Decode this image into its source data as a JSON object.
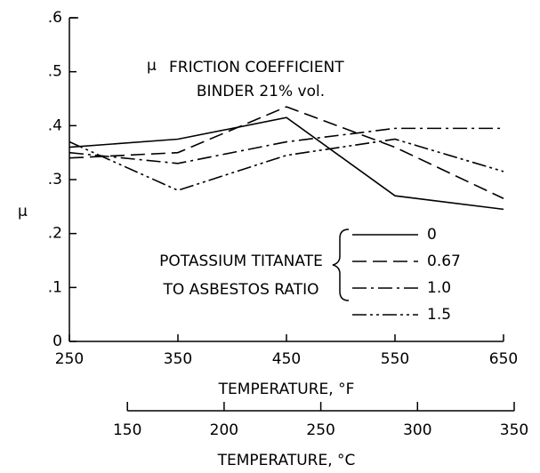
{
  "chart_data": {
    "type": "line",
    "annotation": "FRICTION COEFFICIENT",
    "annotation_symbol": "μ",
    "annotation2": "BINDER 21% vol.",
    "legend_title": [
      "POTASSIUM TITANATE",
      "TO ASBESTOS RATIO"
    ],
    "xlabel": "TEMPERATURE, °F",
    "ylabel": "μ",
    "x2label": "TEMPERATURE, °C",
    "x": [
      250,
      350,
      450,
      550,
      650
    ],
    "xlim": [
      250,
      650
    ],
    "xticks": [
      250,
      350,
      450,
      550,
      650
    ],
    "ylim": [
      0,
      0.6
    ],
    "yticks": [
      0,
      {
        "value": 0.1,
        "label": ".1"
      },
      {
        "value": 0.2,
        "label": ".2"
      },
      {
        "value": 0.3,
        "label": ".3"
      },
      {
        "value": 0.4,
        "label": ".4"
      },
      {
        "value": 0.5,
        "label": ".5"
      },
      {
        "value": 0.6,
        "label": ".6"
      }
    ],
    "x2lim": [
      120,
      350
    ],
    "x2ticks": [
      150,
      200,
      250,
      300,
      350
    ],
    "series": [
      {
        "name": "0",
        "color": "#000000",
        "dash": "none",
        "values": [
          0.36,
          0.375,
          0.415,
          0.27,
          0.245
        ]
      },
      {
        "name": "0.67",
        "color": "#000000",
        "dash": "16 7",
        "values": [
          0.34,
          0.35,
          0.435,
          0.36,
          0.265
        ]
      },
      {
        "name": "1.0",
        "color": "#000000",
        "dash": "16 5 3 5",
        "values": [
          0.35,
          0.33,
          0.37,
          0.395,
          0.395
        ]
      },
      {
        "name": "1.5",
        "color": "#000000",
        "dash": "16 4 3 4 3 4",
        "values": [
          0.37,
          0.28,
          0.345,
          0.375,
          0.315
        ]
      }
    ]
  }
}
